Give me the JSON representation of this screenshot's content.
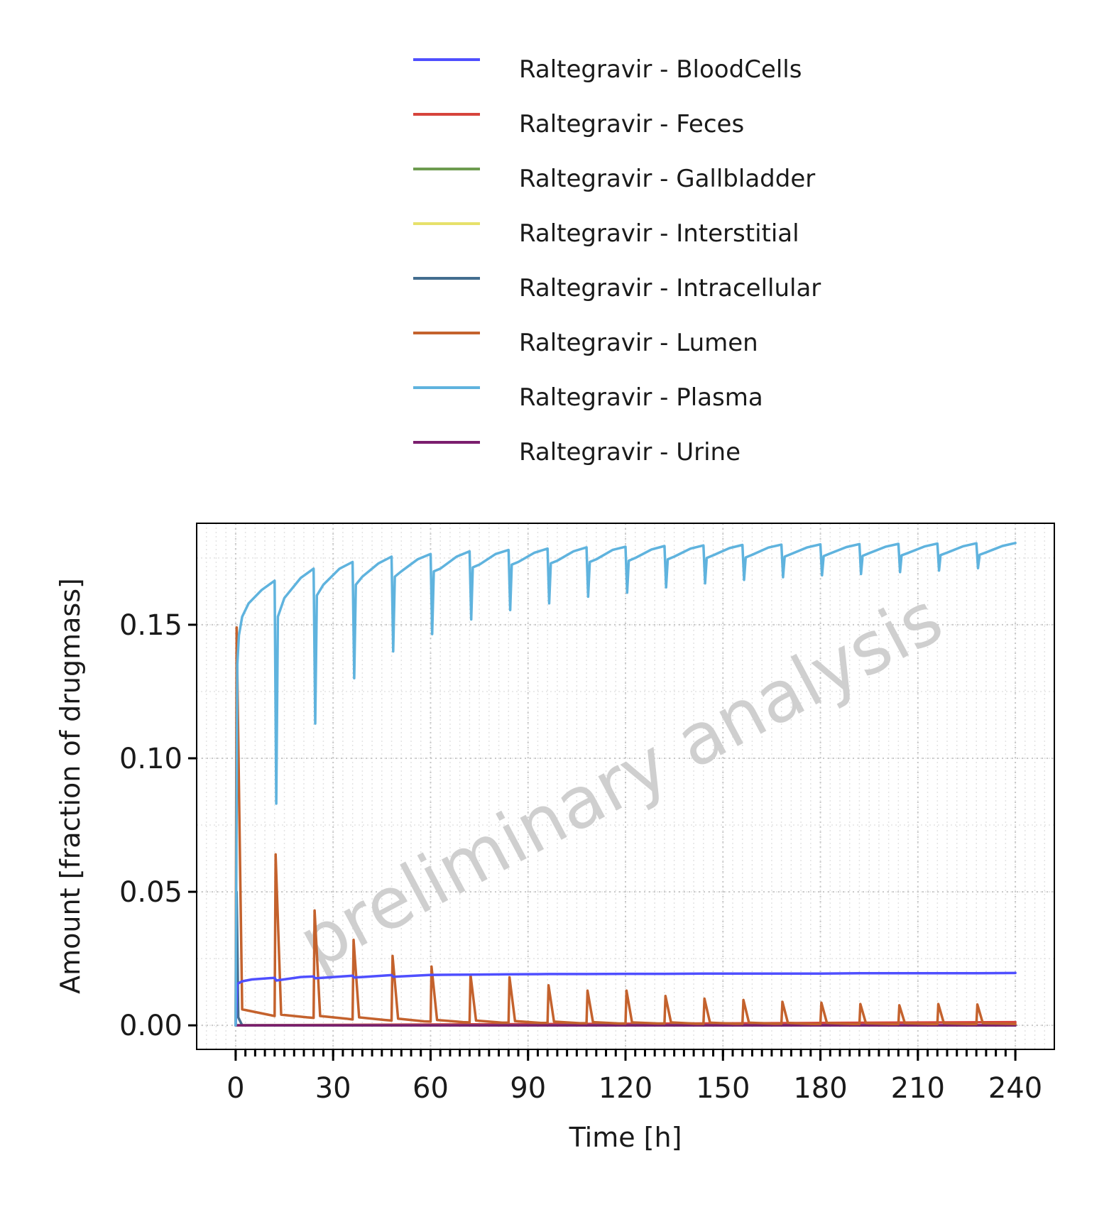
{
  "chart_data": {
    "type": "line",
    "title": "",
    "xlabel": "Time [h]",
    "ylabel": "Amount [fraction of drugmass]",
    "xlim": [
      -12,
      252
    ],
    "ylim": [
      -0.009,
      0.188
    ],
    "x_ticks": [
      0,
      30,
      60,
      90,
      120,
      150,
      180,
      210,
      240
    ],
    "x_tick_labels": [
      "0",
      "30",
      "60",
      "90",
      "120",
      "150",
      "180",
      "210",
      "240"
    ],
    "x_minor_step": 3,
    "y_ticks": [
      0.0,
      0.05,
      0.1,
      0.15
    ],
    "y_tick_labels": [
      "0.00",
      "0.05",
      "0.10",
      "0.15"
    ],
    "y_minor_step": 0.025,
    "grid": true,
    "legend_position": "top",
    "watermark": "preliminary analysis",
    "dosing_interval_h": 12,
    "dose_times_h": [
      0,
      12,
      24,
      36,
      48,
      60,
      72,
      84,
      96,
      108,
      120,
      132,
      144,
      156,
      168,
      180,
      192,
      204,
      216,
      228
    ],
    "series": [
      {
        "name": "Raltegravir - BloodCells",
        "color": "#4f4fff",
        "x": [
          0,
          0.5,
          2,
          5,
          12,
          12.5,
          20,
          24,
          24.5,
          36,
          36.5,
          48,
          48.5,
          60,
          72,
          84,
          96,
          108,
          120,
          132,
          144,
          156,
          168,
          180,
          192,
          204,
          216,
          228,
          240
        ],
        "y": [
          0.0,
          0.0155,
          0.0165,
          0.0172,
          0.0178,
          0.0168,
          0.0181,
          0.0183,
          0.0176,
          0.0186,
          0.0179,
          0.0188,
          0.0182,
          0.0189,
          0.019,
          0.0191,
          0.0192,
          0.0192,
          0.0193,
          0.0193,
          0.0194,
          0.0194,
          0.0194,
          0.0194,
          0.0195,
          0.0195,
          0.0195,
          0.0195,
          0.0196
        ]
      },
      {
        "name": "Raltegravir - Feces",
        "color": "#d6443c",
        "x": [
          0,
          60,
          120,
          180,
          240
        ],
        "y": [
          0.0,
          0.0003,
          0.0006,
          0.0009,
          0.0012
        ]
      },
      {
        "name": "Raltegravir - Gallbladder",
        "color": "#6d9b4f",
        "x": [
          0,
          240
        ],
        "y": [
          0.0,
          0.0
        ]
      },
      {
        "name": "Raltegravir - Interstitial",
        "color": "#e7e16b",
        "x": [
          0,
          240
        ],
        "y": [
          0.0,
          0.0
        ]
      },
      {
        "name": "Raltegravir - Intracellular",
        "color": "#436d8f",
        "x": [
          0,
          0.3,
          0.8,
          2,
          240
        ],
        "y": [
          0.0,
          0.05,
          0.003,
          0.0,
          0.0
        ]
      },
      {
        "name": "Raltegravir - Lumen",
        "color": "#c4622d",
        "x": [
          0,
          0.3,
          2,
          10,
          12,
          12.3,
          14,
          22,
          24,
          24.3,
          26,
          34,
          36,
          36.3,
          38,
          46,
          48,
          48.3,
          50,
          58,
          60,
          60.3,
          62,
          70,
          72,
          72.3,
          74,
          82,
          84,
          84.3,
          86,
          94,
          96,
          96.3,
          98,
          106,
          108,
          108.3,
          110,
          118,
          120,
          120.3,
          122,
          130,
          132,
          132.3,
          134,
          142,
          144,
          144.3,
          146,
          154,
          156,
          156.3,
          158,
          166,
          168,
          168.3,
          170,
          178,
          180,
          180.3,
          182,
          190,
          192,
          192.3,
          194,
          202,
          204,
          204.3,
          206,
          214,
          216,
          216.3,
          218,
          226,
          228,
          228.3,
          230,
          240
        ],
        "y": [
          0.0,
          0.149,
          0.006,
          0.004,
          0.0035,
          0.064,
          0.004,
          0.003,
          0.0028,
          0.043,
          0.0035,
          0.0025,
          0.0022,
          0.032,
          0.003,
          0.002,
          0.0018,
          0.026,
          0.0025,
          0.0015,
          0.0014,
          0.022,
          0.002,
          0.0012,
          0.0011,
          0.019,
          0.0018,
          0.001,
          0.001,
          0.018,
          0.0016,
          0.0009,
          0.0009,
          0.015,
          0.0014,
          0.0008,
          0.0008,
          0.013,
          0.0012,
          0.0007,
          0.0007,
          0.013,
          0.0011,
          0.0007,
          0.0007,
          0.011,
          0.0011,
          0.0006,
          0.0006,
          0.01,
          0.001,
          0.0006,
          0.0006,
          0.0095,
          0.001,
          0.0006,
          0.0006,
          0.0088,
          0.0009,
          0.0005,
          0.0005,
          0.0085,
          0.0009,
          0.0005,
          0.0005,
          0.008,
          0.0008,
          0.0005,
          0.0005,
          0.0075,
          0.0008,
          0.0005,
          0.0005,
          0.008,
          0.0008,
          0.0005,
          0.0005,
          0.0078,
          0.0008,
          0.0005
        ]
      },
      {
        "name": "Raltegravir - Plasma",
        "color": "#5fb3de",
        "x": [
          0,
          0.5,
          1,
          2,
          4,
          8,
          12,
          12.5,
          13,
          15,
          20,
          24,
          24.5,
          25,
          27,
          32,
          36,
          36.5,
          37,
          39,
          44,
          48,
          48.5,
          49,
          51,
          56,
          60,
          60.5,
          61,
          63,
          68,
          72,
          72.5,
          73,
          75,
          80,
          84,
          84.5,
          85,
          87,
          92,
          96,
          96.5,
          97,
          99,
          104,
          108,
          108.5,
          109,
          111,
          116,
          120,
          120.5,
          121,
          123,
          128,
          132,
          132.5,
          133,
          135,
          140,
          144,
          144.5,
          145,
          147,
          152,
          156,
          156.5,
          157,
          159,
          164,
          168,
          168.5,
          169,
          171,
          176,
          180,
          180.5,
          181,
          183,
          188,
          192,
          192.5,
          193,
          195,
          200,
          204,
          204.5,
          205,
          207,
          212,
          216,
          216.5,
          217,
          219,
          224,
          228,
          228.5,
          229,
          231,
          236,
          240
        ],
        "y": [
          0.0,
          0.135,
          0.146,
          0.153,
          0.158,
          0.163,
          0.1665,
          0.083,
          0.153,
          0.16,
          0.1675,
          0.171,
          0.113,
          0.161,
          0.165,
          0.171,
          0.1735,
          0.13,
          0.165,
          0.168,
          0.173,
          0.1755,
          0.14,
          0.168,
          0.17,
          0.1745,
          0.1765,
          0.1465,
          0.17,
          0.171,
          0.1755,
          0.1775,
          0.152,
          0.1715,
          0.1725,
          0.1765,
          0.178,
          0.1555,
          0.1725,
          0.1735,
          0.177,
          0.1785,
          0.158,
          0.173,
          0.174,
          0.1775,
          0.179,
          0.1605,
          0.1735,
          0.1745,
          0.178,
          0.1792,
          0.162,
          0.174,
          0.175,
          0.1782,
          0.1795,
          0.164,
          0.1745,
          0.1755,
          0.1785,
          0.1797,
          0.1655,
          0.175,
          0.176,
          0.1787,
          0.1799,
          0.1668,
          0.1752,
          0.1762,
          0.1789,
          0.18,
          0.1678,
          0.1755,
          0.1765,
          0.179,
          0.1801,
          0.1685,
          0.1757,
          0.1767,
          0.1791,
          0.1802,
          0.169,
          0.1758,
          0.1768,
          0.1792,
          0.1803,
          0.1697,
          0.176,
          0.1769,
          0.1793,
          0.1804,
          0.1703,
          0.1761,
          0.177,
          0.1794,
          0.1805,
          0.1712,
          0.1762,
          0.1771,
          0.1795,
          0.1806
        ]
      },
      {
        "name": "Raltegravir - Urine",
        "color": "#7b1e6e",
        "x": [
          0,
          240
        ],
        "y": [
          0.0,
          0.0
        ]
      }
    ]
  }
}
